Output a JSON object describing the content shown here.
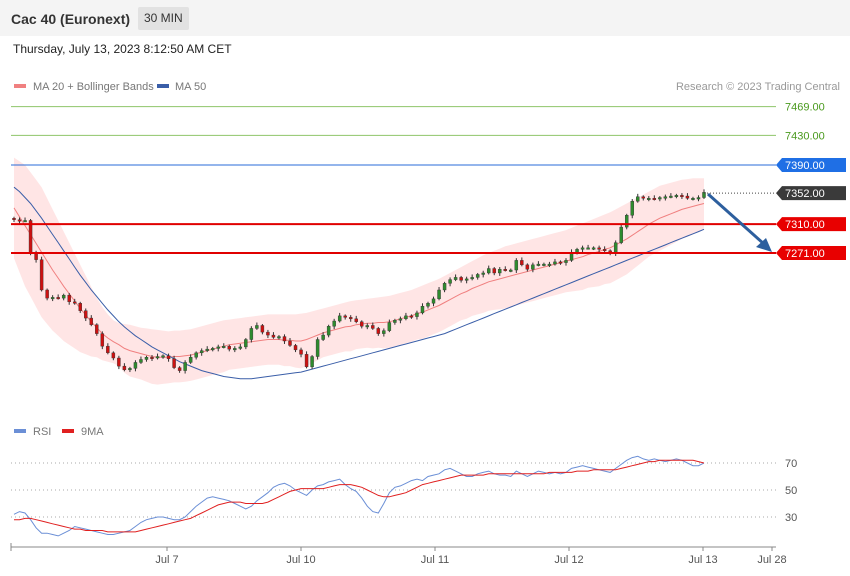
{
  "header": {
    "title": "Cac 40 (Euronext)",
    "timeframe": "30 MIN",
    "datetime": "Thursday, July 13, 2023 8:12:50 AM CET"
  },
  "legend": {
    "ma20": "MA 20 + Bollinger Bands",
    "ma50": "MA 50",
    "rsi": "RSI",
    "rsi_ma": "9MA",
    "credit": "Research © 2023 Trading Central"
  },
  "colors": {
    "ma20": "#f08080",
    "ma50": "#3a5ea8",
    "band_fill": "#ffe0e0",
    "bull": "#2e8b2e",
    "bear": "#cc1111",
    "resistance_green": "#8ec46a",
    "pivot_blue": "#2a6bd8",
    "support_red": "#e00000",
    "arrow": "#2d5f9e",
    "rsi": "#6b8fd6",
    "rsi_ma": "#e02020"
  },
  "chart_data": [
    {
      "type": "candlestick",
      "y_range": [
        7200,
        7480
      ],
      "x_labels": [
        "Jul 7",
        "Jul 10",
        "Jul 11",
        "Jul 12",
        "Jul 13",
        "Jul 28"
      ],
      "levels": [
        {
          "value": 7469.0,
          "label": "7469.00",
          "kind": "resistance"
        },
        {
          "value": 7430.0,
          "label": "7430.00",
          "kind": "resistance"
        },
        {
          "value": 7390.0,
          "label": "7390.00",
          "kind": "pivot"
        },
        {
          "value": 7352.0,
          "label": "7352.00",
          "kind": "last"
        },
        {
          "value": 7310.0,
          "label": "7310.00",
          "kind": "support"
        },
        {
          "value": 7271.0,
          "label": "7271.00",
          "kind": "support"
        }
      ],
      "close": [
        7316,
        7315,
        7315,
        7271,
        7262,
        7221,
        7210,
        7211,
        7210,
        7214,
        7205,
        7203,
        7193,
        7183,
        7174,
        7162,
        7145,
        7136,
        7129,
        7118,
        7113,
        7115,
        7123,
        7127,
        7130,
        7129,
        7131,
        7132,
        7128,
        7116,
        7112,
        7123,
        7130,
        7136,
        7139,
        7141,
        7142,
        7144,
        7145,
        7141,
        7142,
        7144,
        7154,
        7169,
        7173,
        7164,
        7160,
        7157,
        7158,
        7152,
        7146,
        7140,
        7134,
        7117,
        7131,
        7154,
        7160,
        7172,
        7179,
        7186,
        7184,
        7182,
        7178,
        7172,
        7173,
        7169,
        7162,
        7166,
        7177,
        7180,
        7182,
        7186,
        7185,
        7190,
        7199,
        7203,
        7209,
        7221,
        7230,
        7235,
        7238,
        7234,
        7236,
        7238,
        7242,
        7244,
        7250,
        7244,
        7249,
        7248,
        7248,
        7261,
        7255,
        7249,
        7255,
        7256,
        7256,
        7256,
        7259,
        7258,
        7261,
        7272,
        7276,
        7278,
        7278,
        7278,
        7276,
        7274,
        7271,
        7285,
        7306,
        7322,
        7341,
        7347,
        7345,
        7345,
        7344,
        7346,
        7347,
        7348,
        7349,
        7348,
        7345,
        7345,
        7346,
        7353
      ],
      "ma20": [
        7332,
        7320,
        7308,
        7296,
        7284,
        7272,
        7260,
        7248,
        7237,
        7226,
        7216,
        7206,
        7196,
        7187,
        7178,
        7170,
        7162,
        7156,
        7151,
        7147,
        7142,
        7139,
        7137,
        7135,
        7133,
        7131,
        7130,
        7130,
        7130,
        7131,
        7131,
        7132,
        7133,
        7135,
        7137,
        7139,
        7141,
        7143,
        7145,
        7147,
        7148,
        7149,
        7150,
        7151,
        7152,
        7153,
        7154,
        7154,
        7154,
        7153,
        7153,
        7152,
        7152,
        7154,
        7157,
        7160,
        7163,
        7165,
        7167,
        7169,
        7171,
        7172,
        7174,
        7175,
        7176,
        7176,
        7177,
        7177,
        7178,
        7180,
        7182,
        7184,
        7186,
        7189,
        7191,
        7194,
        7197,
        7200,
        7204,
        7208,
        7212,
        7216,
        7219,
        7223,
        7226,
        7229,
        7232,
        7234,
        7236,
        7238,
        7240,
        7242,
        7244,
        7246,
        7248,
        7250,
        7252,
        7254,
        7256,
        7258,
        7260,
        7262,
        7264,
        7266,
        7269,
        7271,
        7273,
        7276,
        7278,
        7282,
        7286,
        7290,
        7295,
        7300,
        7305,
        7310,
        7314,
        7318,
        7321,
        7324,
        7327,
        7330,
        7332,
        7334,
        7336,
        7338
      ],
      "bb_upper": [
        7400,
        7395,
        7390,
        7380,
        7370,
        7360,
        7345,
        7330,
        7315,
        7300,
        7285,
        7270,
        7255,
        7240,
        7225,
        7210,
        7198,
        7188,
        7180,
        7176,
        7175,
        7174,
        7172,
        7170,
        7169,
        7168,
        7167,
        7166,
        7165,
        7166,
        7166,
        7167,
        7168,
        7170,
        7172,
        7174,
        7176,
        7178,
        7180,
        7181,
        7182,
        7183,
        7184,
        7185,
        7186,
        7187,
        7188,
        7188,
        7188,
        7188,
        7188,
        7188,
        7189,
        7190,
        7192,
        7194,
        7196,
        7198,
        7200,
        7202,
        7204,
        7206,
        7207,
        7208,
        7209,
        7210,
        7211,
        7212,
        7213,
        7215,
        7217,
        7219,
        7221,
        7224,
        7227,
        7230,
        7233,
        7236,
        7240,
        7244,
        7248,
        7252,
        7256,
        7260,
        7264,
        7268,
        7271,
        7274,
        7277,
        7280,
        7282,
        7284,
        7286,
        7288,
        7290,
        7292,
        7294,
        7296,
        7298,
        7300,
        7302,
        7305,
        7308,
        7311,
        7314,
        7317,
        7320,
        7323,
        7326,
        7330,
        7334,
        7338,
        7342,
        7346,
        7350,
        7354,
        7358,
        7362,
        7364,
        7366,
        7368,
        7370,
        7371,
        7372,
        7372,
        7372
      ],
      "bb_lower": [
        7264,
        7245,
        7226,
        7212,
        7198,
        7184,
        7175,
        7166,
        7159,
        7152,
        7147,
        7142,
        7137,
        7134,
        7131,
        7130,
        7126,
        7124,
        7122,
        7118,
        7109,
        7104,
        7102,
        7100,
        7097,
        7094,
        7093,
        7094,
        7095,
        7096,
        7096,
        7097,
        7098,
        7100,
        7102,
        7104,
        7106,
        7108,
        7110,
        7113,
        7114,
        7115,
        7116,
        7117,
        7118,
        7119,
        7120,
        7120,
        7120,
        7118,
        7118,
        7116,
        7115,
        7118,
        7122,
        7126,
        7130,
        7132,
        7134,
        7136,
        7138,
        7138,
        7141,
        7142,
        7143,
        7142,
        7143,
        7142,
        7143,
        7145,
        7147,
        7149,
        7151,
        7154,
        7155,
        7158,
        7161,
        7164,
        7168,
        7172,
        7176,
        7180,
        7182,
        7186,
        7188,
        7190,
        7193,
        7194,
        7195,
        7196,
        7198,
        7200,
        7202,
        7204,
        7206,
        7208,
        7210,
        7212,
        7214,
        7216,
        7218,
        7219,
        7220,
        7221,
        7224,
        7225,
        7226,
        7229,
        7230,
        7234,
        7238,
        7242,
        7248,
        7254,
        7260,
        7266,
        7270,
        7274,
        7278,
        7282,
        7286,
        7290,
        7293,
        7296,
        7300,
        7304
      ],
      "ma50": [
        7360,
        7354,
        7346,
        7338,
        7328,
        7318,
        7307,
        7296,
        7285,
        7274,
        7263,
        7252,
        7241,
        7231,
        7221,
        7212,
        7203,
        7194,
        7186,
        7178,
        7171,
        7165,
        7159,
        7154,
        7149,
        7144,
        7140,
        7136,
        7132,
        7128,
        7124,
        7121,
        7118,
        7115,
        7112,
        7110,
        7108,
        7106,
        7104,
        7103,
        7102,
        7101,
        7101,
        7101,
        7102,
        7103,
        7104,
        7105,
        7106,
        7107,
        7108,
        7109,
        7110,
        7112,
        7114,
        7116,
        7118,
        7120,
        7122,
        7124,
        7126,
        7128,
        7130,
        7132,
        7134,
        7136,
        7138,
        7140,
        7142,
        7144,
        7146,
        7148,
        7150,
        7152,
        7154,
        7156,
        7158,
        7160,
        7162,
        7165,
        7168,
        7171,
        7174,
        7177,
        7180,
        7183,
        7186,
        7189,
        7192,
        7195,
        7198,
        7201,
        7204,
        7207,
        7210,
        7213,
        7216,
        7219,
        7222,
        7225,
        7228,
        7231,
        7234,
        7237,
        7240,
        7243,
        7246,
        7249,
        7252,
        7255,
        7258,
        7261,
        7264,
        7267,
        7270,
        7273,
        7276,
        7279,
        7282,
        7285,
        7288,
        7291,
        7294,
        7297,
        7300,
        7303
      ]
    },
    {
      "type": "line",
      "y_ticks": [
        30,
        50,
        70
      ],
      "y_range": [
        10,
        80
      ],
      "series": [
        {
          "name": "RSI",
          "values": [
            32,
            34,
            33,
            28,
            22,
            18,
            18,
            17,
            16,
            18,
            20,
            23,
            22,
            21,
            20,
            19,
            18,
            17,
            17,
            18,
            19,
            20,
            23,
            26,
            28,
            29,
            30,
            30,
            29,
            28,
            28,
            30,
            34,
            38,
            41,
            44,
            45,
            44,
            43,
            42,
            40,
            38,
            36,
            38,
            42,
            45,
            48,
            52,
            54,
            55,
            53,
            50,
            48,
            46,
            50,
            53,
            54,
            56,
            57,
            58,
            54,
            51,
            49,
            44,
            38,
            34,
            33,
            40,
            48,
            52,
            53,
            55,
            57,
            58,
            57,
            60,
            61,
            62,
            65,
            66,
            64,
            62,
            60,
            60,
            62,
            63,
            64,
            62,
            61,
            61,
            60,
            64,
            62,
            60,
            62,
            64,
            63,
            62,
            63,
            62,
            63,
            66,
            67,
            68,
            67,
            66,
            65,
            64,
            63,
            66,
            69,
            72,
            74,
            75,
            73,
            72,
            73,
            72,
            71,
            72,
            73,
            72,
            70,
            68,
            68,
            70
          ]
        },
        {
          "name": "9MA",
          "values": [
            28,
            28,
            29,
            29,
            28,
            27,
            26,
            25,
            24,
            23,
            22,
            21,
            21,
            20,
            20,
            20,
            20,
            19,
            19,
            19,
            19,
            19,
            19,
            20,
            21,
            22,
            23,
            24,
            25,
            26,
            27,
            28,
            29,
            31,
            33,
            35,
            37,
            39,
            40,
            41,
            41,
            41,
            40,
            40,
            40,
            40,
            41,
            43,
            45,
            47,
            49,
            50,
            51,
            51,
            51,
            51,
            51,
            52,
            53,
            54,
            54,
            54,
            53,
            52,
            50,
            48,
            46,
            45,
            45,
            46,
            47,
            48,
            50,
            52,
            54,
            55,
            56,
            57,
            58,
            59,
            60,
            61,
            61,
            61,
            61,
            61,
            62,
            62,
            62,
            62,
            62,
            62,
            62,
            62,
            62,
            62,
            62,
            63,
            63,
            63,
            63,
            63,
            64,
            64,
            64,
            65,
            65,
            65,
            65,
            65,
            66,
            67,
            68,
            69,
            70,
            71,
            71,
            72,
            72,
            72,
            72,
            72,
            72,
            72,
            71,
            70
          ]
        }
      ]
    }
  ]
}
